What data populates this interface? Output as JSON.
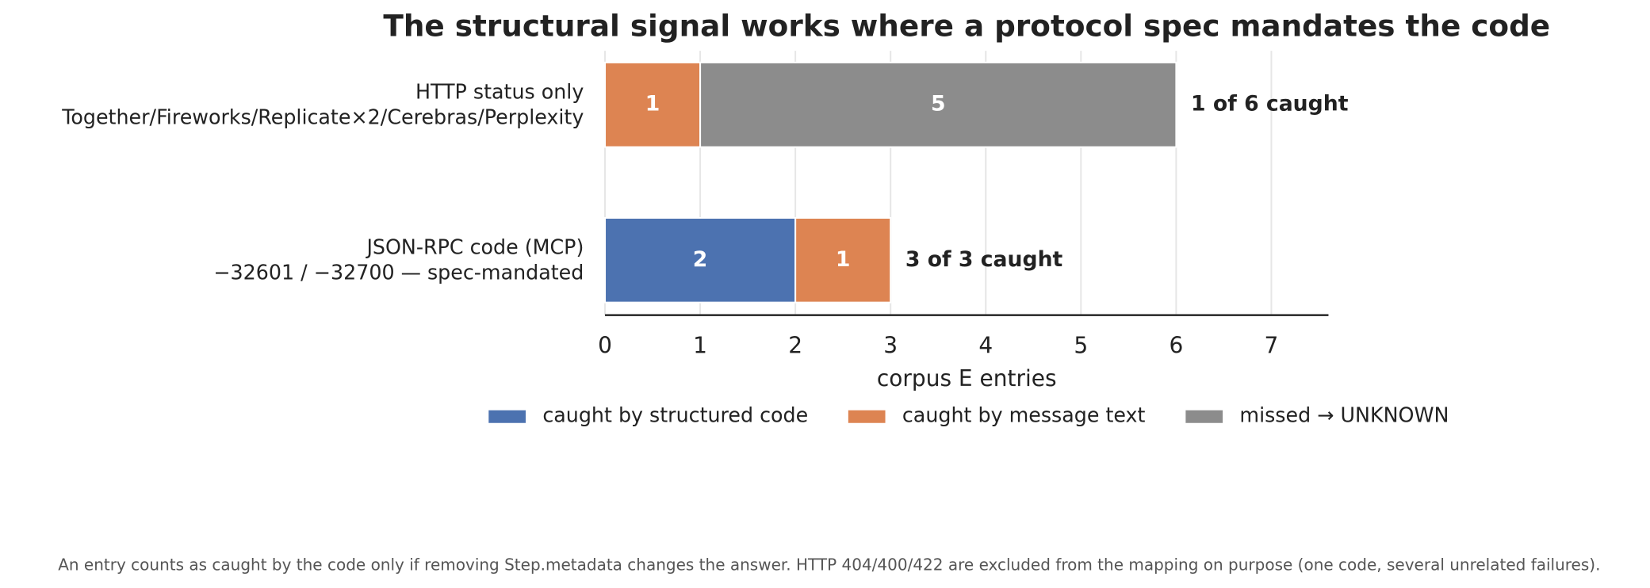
{
  "chart_data": {
    "type": "barh-stacked",
    "title": "The structural signal works where a protocol spec mandates the code",
    "categories": [
      [
        "HTTP status only",
        "Together/Fireworks/Replicate×2/Cerebras/Perplexity"
      ],
      [
        "JSON-RPC code (MCP)",
        "−32601 / −32700 — spec-mandated"
      ]
    ],
    "series": [
      {
        "name": "caught by structured code",
        "color": "#4c72b0",
        "values": [
          0,
          2
        ]
      },
      {
        "name": "caught by message text",
        "color": "#dd8452",
        "values": [
          1,
          1
        ]
      },
      {
        "name": "missed → UNKNOWN",
        "color": "#8c8c8c",
        "values": [
          5,
          0
        ]
      }
    ],
    "annotations": [
      "1 of 6 caught",
      "3 of 3 caught"
    ],
    "xlabel": "corpus E entries",
    "xlim": [
      0,
      7.6
    ],
    "xticks": [
      0,
      1,
      2,
      3,
      4,
      5,
      6,
      7
    ],
    "grid": true,
    "legend": "bottom",
    "footnote": "An entry counts as caught by the code only if removing Step.metadata changes the answer. HTTP 404/400/422 are excluded from the mapping on purpose (one code, several unrelated failures)."
  }
}
